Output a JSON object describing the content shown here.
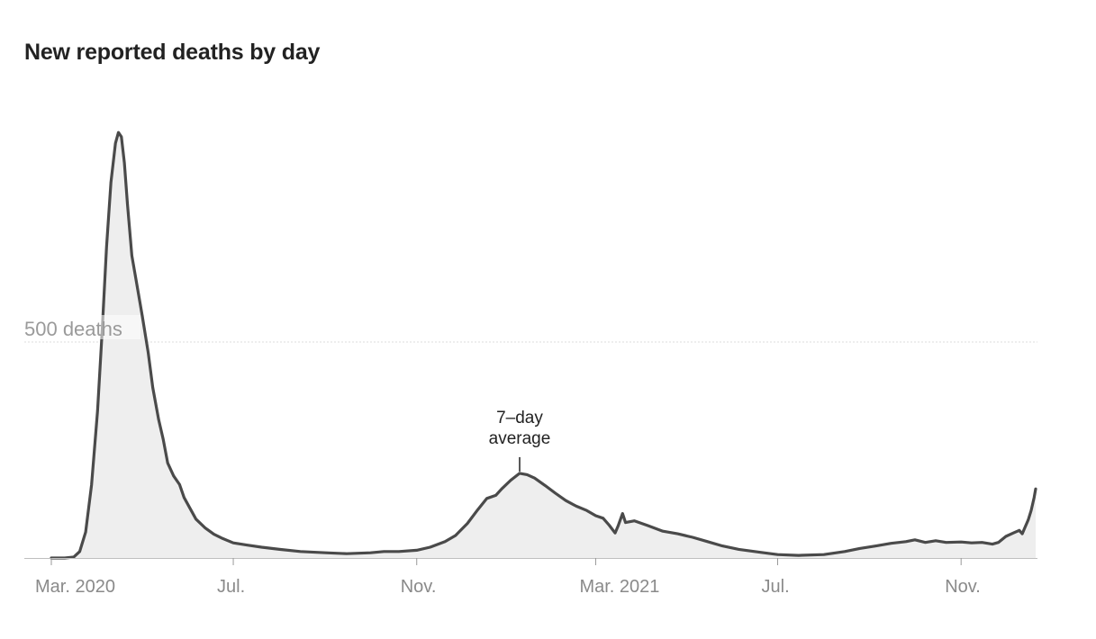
{
  "chart_data": {
    "type": "area",
    "title": "New reported deaths by day",
    "xlabel": "",
    "ylabel": "",
    "x_range": [
      "2020-03-01",
      "2021-12-21"
    ],
    "ylim": [
      0,
      1000
    ],
    "grid": {
      "horizontal": [
        500
      ]
    },
    "y_tick_labels": [
      {
        "value": 500,
        "label": "500 deaths"
      }
    ],
    "x_tick_labels": [
      {
        "date": "2020-03-01",
        "label": "Mar. 2020"
      },
      {
        "date": "2020-07-01",
        "label": "Jul."
      },
      {
        "date": "2020-11-01",
        "label": "Nov."
      },
      {
        "date": "2021-03-01",
        "label": "Mar. 2021"
      },
      {
        "date": "2021-07-01",
        "label": "Jul."
      },
      {
        "date": "2021-11-01",
        "label": "Nov."
      }
    ],
    "annotation": {
      "date": "2021-01-09",
      "value": 196,
      "lines": [
        "7–day",
        "average"
      ]
    },
    "colors": {
      "line": "#4a4a4a",
      "fill": "#eeeeee",
      "grid": "#dddddd"
    },
    "series": [
      {
        "points": [
          [
            "2020-03-01",
            0
          ],
          [
            "2020-03-10",
            0
          ],
          [
            "2020-03-16",
            2
          ],
          [
            "2020-03-20",
            15
          ],
          [
            "2020-03-24",
            60
          ],
          [
            "2020-03-28",
            170
          ],
          [
            "2020-04-01",
            340
          ],
          [
            "2020-04-04",
            520
          ],
          [
            "2020-04-07",
            720
          ],
          [
            "2020-04-10",
            870
          ],
          [
            "2020-04-13",
            960
          ],
          [
            "2020-04-15",
            985
          ],
          [
            "2020-04-17",
            975
          ],
          [
            "2020-04-19",
            915
          ],
          [
            "2020-04-21",
            820
          ],
          [
            "2020-04-24",
            700
          ],
          [
            "2020-04-27",
            640
          ],
          [
            "2020-05-01",
            560
          ],
          [
            "2020-05-05",
            475
          ],
          [
            "2020-05-08",
            395
          ],
          [
            "2020-05-12",
            320
          ],
          [
            "2020-05-15",
            275
          ],
          [
            "2020-05-18",
            220
          ],
          [
            "2020-05-22",
            190
          ],
          [
            "2020-05-26",
            170
          ],
          [
            "2020-05-29",
            140
          ],
          [
            "2020-06-02",
            115
          ],
          [
            "2020-06-06",
            90
          ],
          [
            "2020-06-12",
            70
          ],
          [
            "2020-06-18",
            55
          ],
          [
            "2020-06-24",
            45
          ],
          [
            "2020-07-01",
            35
          ],
          [
            "2020-07-10",
            30
          ],
          [
            "2020-07-20",
            25
          ],
          [
            "2020-08-01",
            20
          ],
          [
            "2020-08-15",
            15
          ],
          [
            "2020-09-01",
            12
          ],
          [
            "2020-09-15",
            10
          ],
          [
            "2020-10-01",
            12
          ],
          [
            "2020-10-10",
            15
          ],
          [
            "2020-10-20",
            15
          ],
          [
            "2020-11-01",
            18
          ],
          [
            "2020-11-10",
            25
          ],
          [
            "2020-11-20",
            38
          ],
          [
            "2020-11-27",
            52
          ],
          [
            "2020-12-05",
            80
          ],
          [
            "2020-12-12",
            112
          ],
          [
            "2020-12-18",
            138
          ],
          [
            "2020-12-24",
            145
          ],
          [
            "2020-12-28",
            160
          ],
          [
            "2021-01-03",
            180
          ],
          [
            "2021-01-09",
            196
          ],
          [
            "2021-01-14",
            193
          ],
          [
            "2021-01-19",
            185
          ],
          [
            "2021-01-26",
            168
          ],
          [
            "2021-02-02",
            150
          ],
          [
            "2021-02-09",
            133
          ],
          [
            "2021-02-16",
            120
          ],
          [
            "2021-02-23",
            110
          ],
          [
            "2021-03-01",
            98
          ],
          [
            "2021-03-06",
            92
          ],
          [
            "2021-03-10",
            76
          ],
          [
            "2021-03-14",
            58
          ],
          [
            "2021-03-16",
            74
          ],
          [
            "2021-03-19",
            103
          ],
          [
            "2021-03-21",
            82
          ],
          [
            "2021-03-27",
            86
          ],
          [
            "2021-04-05",
            75
          ],
          [
            "2021-04-15",
            62
          ],
          [
            "2021-04-25",
            56
          ],
          [
            "2021-05-05",
            48
          ],
          [
            "2021-05-15",
            38
          ],
          [
            "2021-05-25",
            28
          ],
          [
            "2021-06-05",
            20
          ],
          [
            "2021-06-20",
            13
          ],
          [
            "2021-07-01",
            8
          ],
          [
            "2021-07-15",
            6
          ],
          [
            "2021-08-01",
            8
          ],
          [
            "2021-08-15",
            15
          ],
          [
            "2021-08-25",
            22
          ],
          [
            "2021-09-05",
            28
          ],
          [
            "2021-09-15",
            34
          ],
          [
            "2021-09-25",
            38
          ],
          [
            "2021-10-01",
            42
          ],
          [
            "2021-10-08",
            36
          ],
          [
            "2021-10-15",
            40
          ],
          [
            "2021-10-22",
            36
          ],
          [
            "2021-11-01",
            37
          ],
          [
            "2021-11-08",
            35
          ],
          [
            "2021-11-15",
            36
          ],
          [
            "2021-11-22",
            32
          ],
          [
            "2021-11-26",
            36
          ],
          [
            "2021-12-01",
            50
          ],
          [
            "2021-12-06",
            58
          ],
          [
            "2021-12-10",
            64
          ],
          [
            "2021-12-12",
            56
          ],
          [
            "2021-12-14",
            72
          ],
          [
            "2021-12-16",
            88
          ],
          [
            "2021-12-18",
            110
          ],
          [
            "2021-12-20",
            140
          ],
          [
            "2021-12-21",
            160
          ]
        ]
      }
    ]
  }
}
